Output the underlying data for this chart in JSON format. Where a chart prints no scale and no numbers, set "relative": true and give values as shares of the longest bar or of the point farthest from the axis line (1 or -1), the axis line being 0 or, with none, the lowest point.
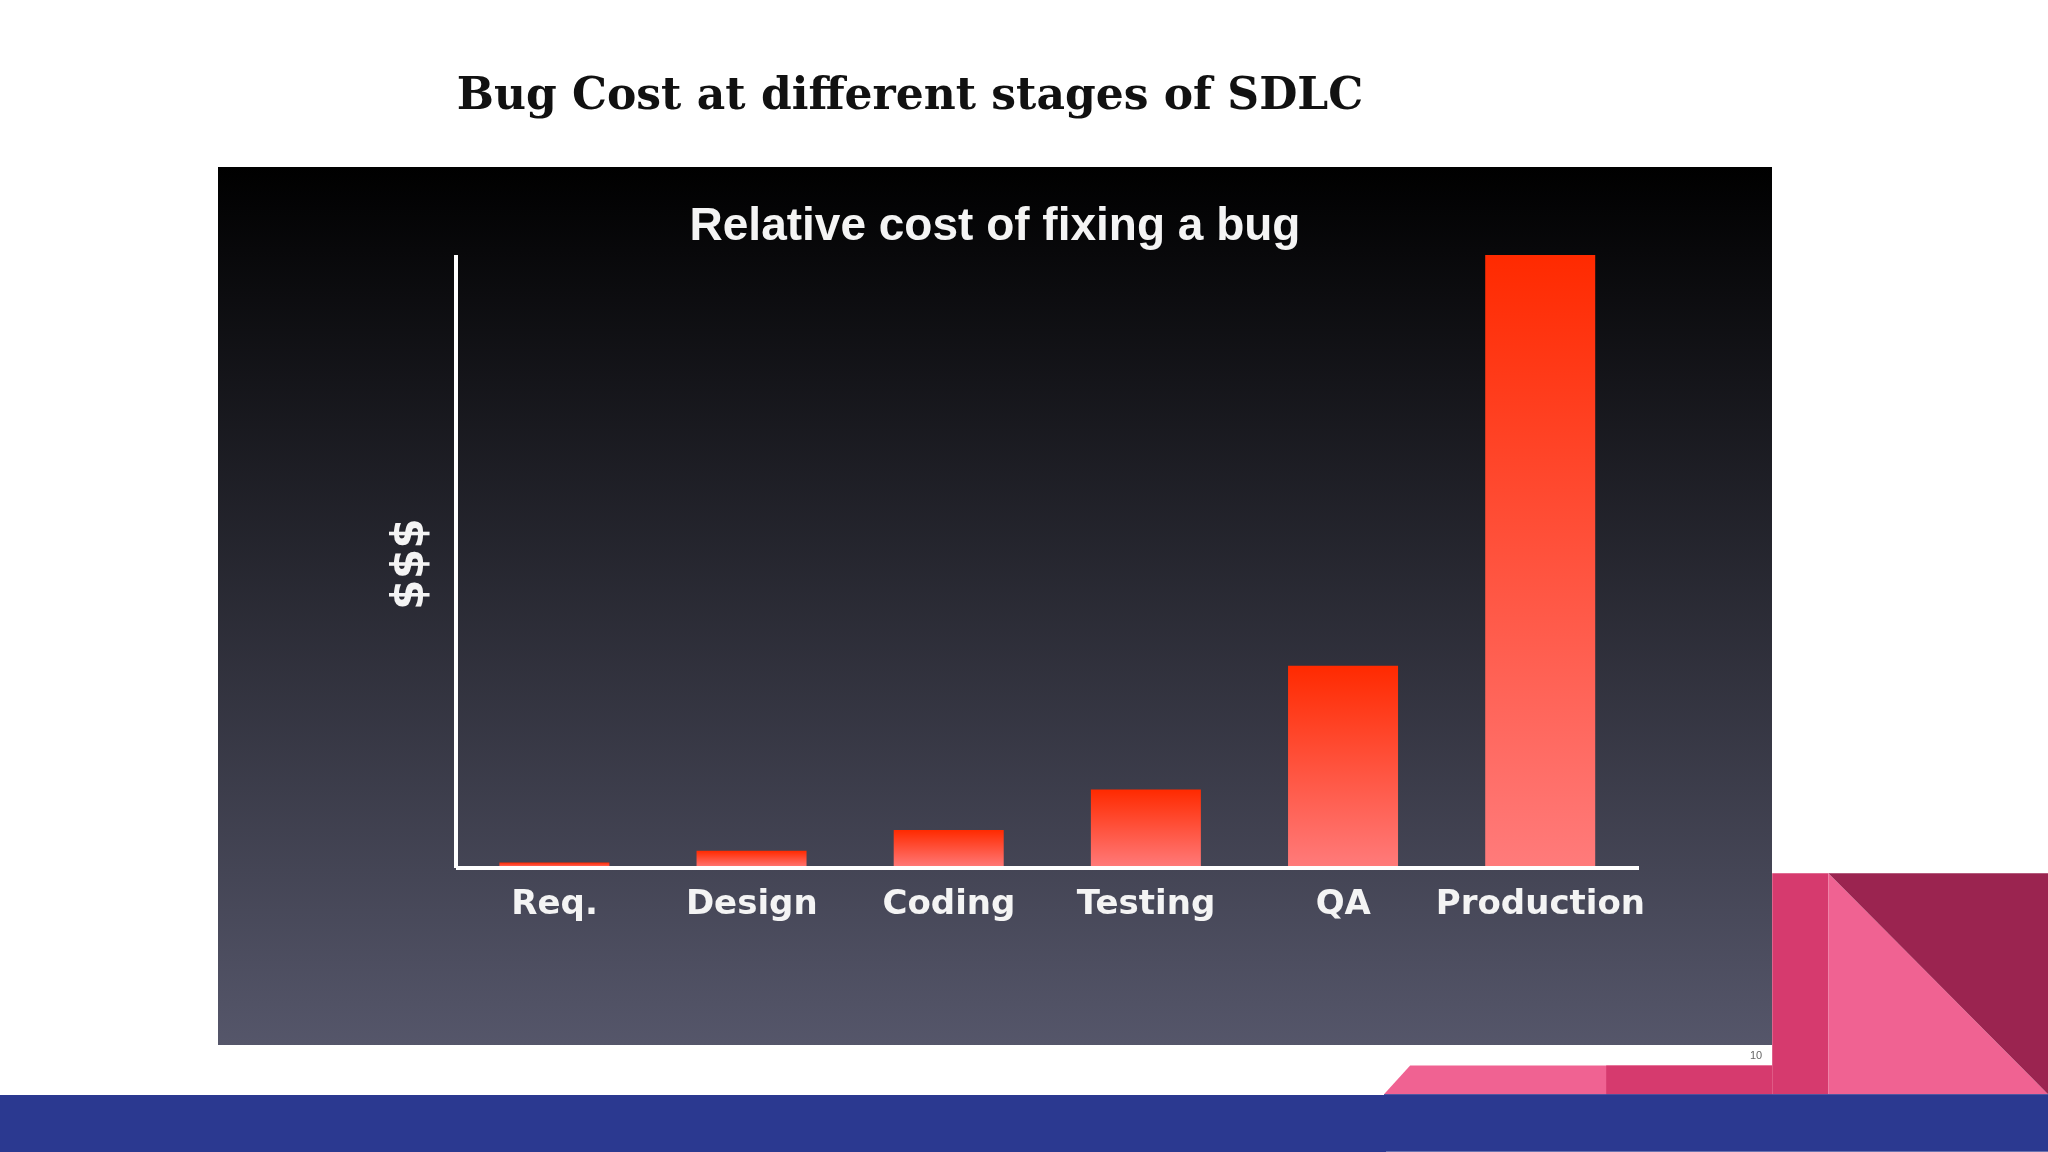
{
  "chart_data": {
    "type": "bar",
    "title": "Bug Cost at different stages of SDLC",
    "subtitle": "Relative cost of fixing a bug",
    "ylabel": "$$$",
    "categories": [
      "Req.",
      "Design",
      "Coding",
      "Testing",
      "QA",
      "Production"
    ],
    "values": [
      0.009,
      0.028,
      0.062,
      0.128,
      0.33,
      1
    ],
    "color": "#ff2a00",
    "relative": true,
    "grid": false,
    "legend": false,
    "annotations": [
      "10"
    ]
  }
}
